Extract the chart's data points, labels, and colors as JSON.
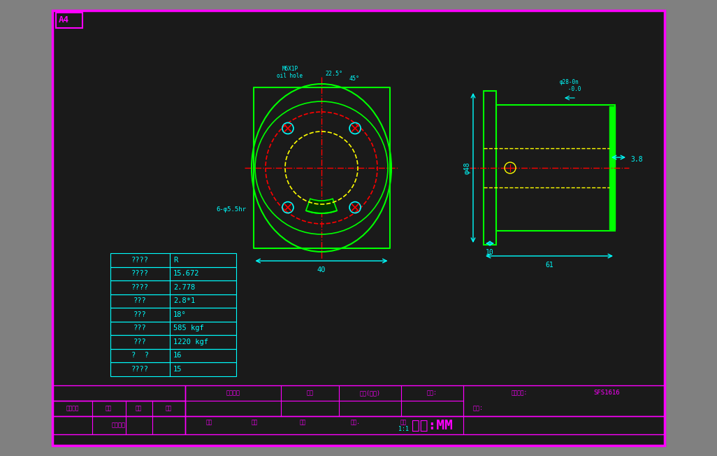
{
  "bg_color": "#1a1a1a",
  "outer_border_color": "#cc00cc",
  "cyan": "#00ffff",
  "green": "#00ff00",
  "yellow": "#ffff00",
  "red": "#ff0000",
  "white": "#ffffff",
  "magenta": "#ff00ff",
  "title_tag": "A4",
  "table_rows": [
    [
      "????",
      "R"
    ],
    [
      "????",
      "15.672"
    ],
    [
      "????",
      "2.778"
    ],
    [
      "???",
      "2.8*1"
    ],
    [
      "???",
      "18°"
    ],
    [
      "???",
      "585 kgf"
    ],
    [
      "???",
      "1220 kgf"
    ],
    [
      "?  ?",
      "16"
    ],
    [
      "????",
      "15"
    ]
  ],
  "title_block": {
    "client": "客户名称",
    "date": "日期",
    "qty": "数量(单台)",
    "part_no": "型号:",
    "ref_no": "小配图号:",
    "ref_val": "SFS1616",
    "material": "材料:",
    "drawn": "绘图",
    "designed": "设计",
    "checked": "审核",
    "view": "视角.",
    "scale": "比例",
    "scale_val": "1:1",
    "unit": "单位:MM",
    "change": "更改标记",
    "count": "处数",
    "date2": "日期",
    "sign": "签名",
    "client_confirm": "客户确认"
  }
}
